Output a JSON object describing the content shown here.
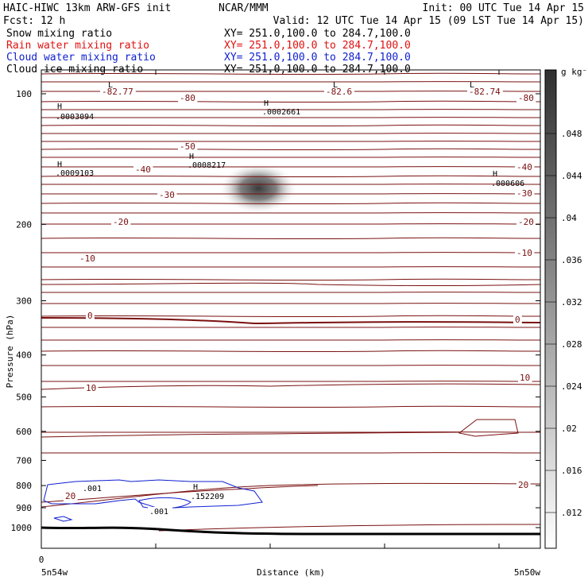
{
  "header": {
    "line1_left": "HAIC-HIWC 13km ARW-GFS init",
    "line1_mid": "NCAR/MMM",
    "line1_right": "Init: 00 UTC Tue 14 Apr 15",
    "line2_left": "Fcst:   12 h",
    "line2_right": "Valid: 12 UTC Tue 14 Apr 15 (09 LST Tue 14 Apr 15)",
    "fields": [
      {
        "name": "Snow mixing ratio",
        "xy": "XY= 251.0,100.0 to 284.7,100.0",
        "color": "#000000"
      },
      {
        "name": "Rain water mixing ratio",
        "xy": "XY= 251.0,100.0 to 284.7,100.0",
        "color": "#e01010"
      },
      {
        "name": "Cloud water mixing ratio",
        "xy": "XY= 251.0,100.0 to 284.7,100.0",
        "color": "#1020d0"
      },
      {
        "name": "Cloud ice mixing ratio",
        "xy": "XY= 251.0,100.0 to 284.7,100.0",
        "color": "#000000"
      }
    ]
  },
  "chart_data": {
    "type": "cross-section contour",
    "ylabel": "Pressure (hPa)",
    "xlabel": "Distance (km)",
    "x_start_label": "5n54w",
    "x_end_label": "5n50w",
    "x_zero_label": "0",
    "yticks": [
      100,
      200,
      300,
      400,
      500,
      600,
      700,
      800,
      900,
      1000
    ],
    "colorbar": {
      "unit": "g kg⁻¹",
      "ticks": [
        ".048",
        ".044",
        ".04",
        ".036",
        ".032",
        ".028",
        ".024",
        ".02",
        ".016",
        ".012"
      ]
    },
    "temperature_labels": [
      "-82.77",
      "-80",
      "-82.6",
      "-82.74",
      "-80",
      "-50",
      "-40",
      "-40",
      "-30",
      "-30",
      "-20",
      "-20",
      "-10",
      "-10",
      "0",
      "0",
      "10",
      "10",
      "20",
      "20"
    ],
    "extrema_labels": [
      {
        "type": "L",
        "value": "-82.77"
      },
      {
        "type": "L",
        "value": "-82.6"
      },
      {
        "type": "L",
        "value": "-82.74"
      },
      {
        "type": "H",
        "value": ".0003094"
      },
      {
        "type": "H",
        "value": ".0002661"
      },
      {
        "type": "H",
        "value": ".0009103"
      },
      {
        "type": "H",
        "value": ".0008217"
      },
      {
        "type": "H",
        "value": ".000606"
      },
      {
        "type": "H",
        "value": ".152209"
      }
    ],
    "cloud_water_labels": [
      ".001",
      ".001"
    ]
  }
}
